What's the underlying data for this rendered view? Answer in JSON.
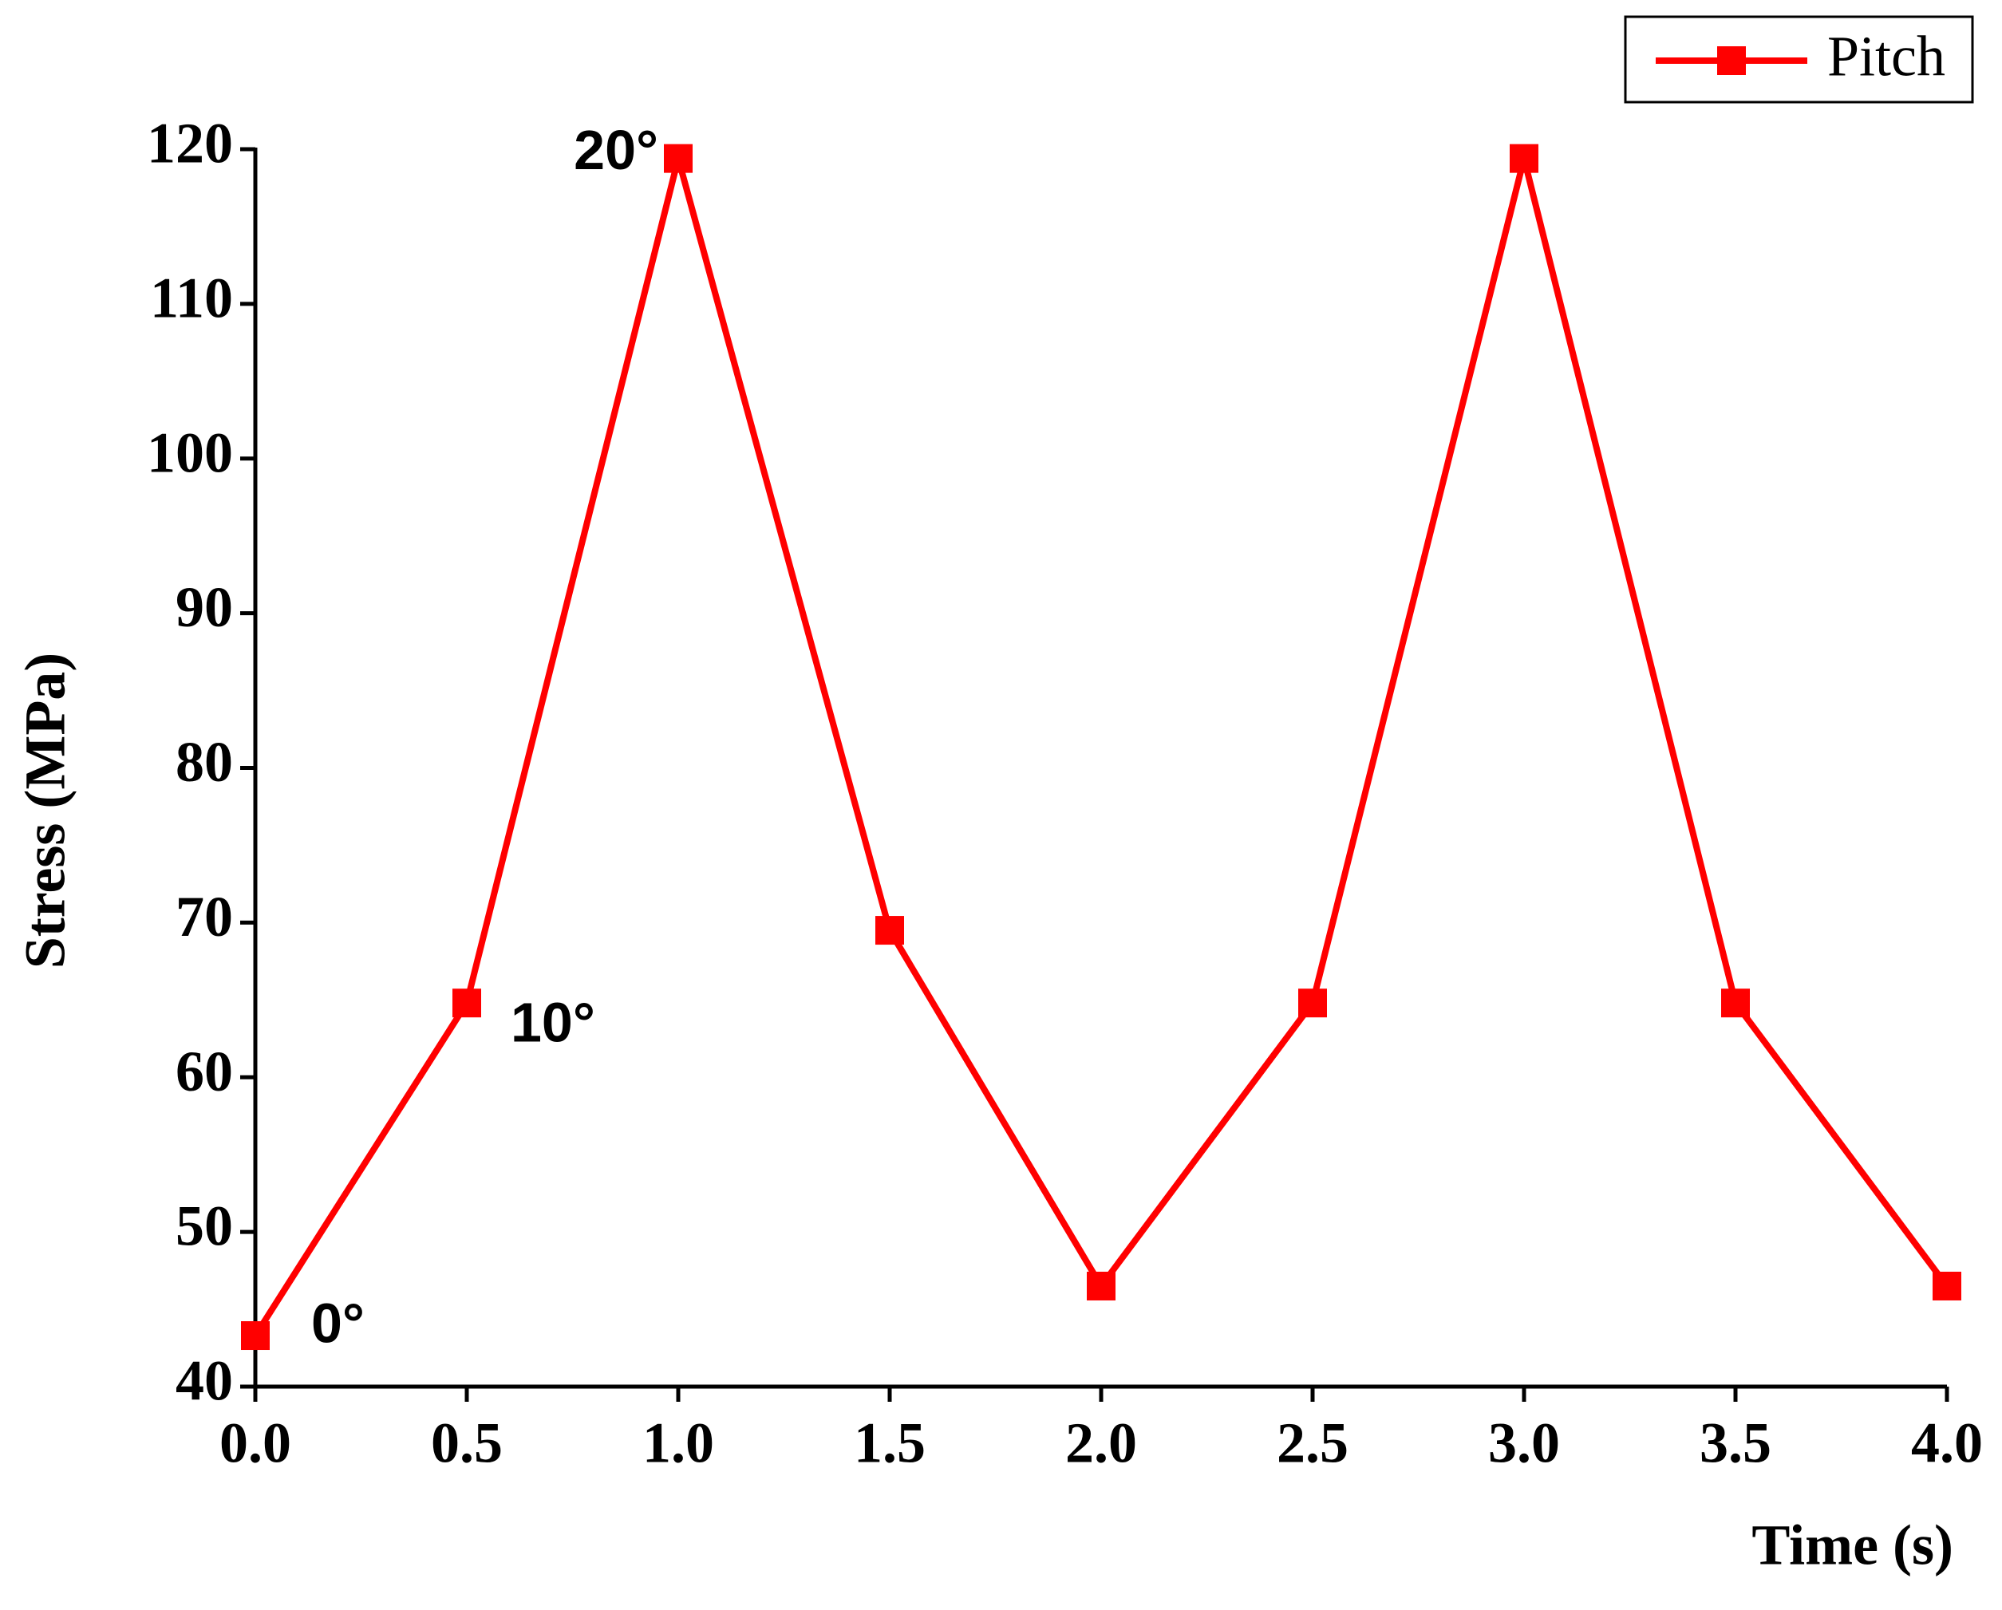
{
  "chart_data": {
    "type": "line",
    "x": [
      0,
      0.5,
      1,
      1.5,
      2,
      2.5,
      3,
      3.5,
      4
    ],
    "series": [
      {
        "name": "Pitch",
        "color": "#ff0000",
        "values": [
          43.3,
          64.8,
          119.4,
          69.5,
          46.5,
          64.8,
          119.4,
          64.8,
          46.5
        ]
      }
    ],
    "xlabel": "Time (s)",
    "ylabel": "Stress (MPa)",
    "xlim": [
      0,
      4
    ],
    "ylim": [
      40,
      120
    ],
    "xticks": [
      {
        "value": 0,
        "label": "0.0"
      },
      0.5,
      {
        "value": 1,
        "label": "1.0"
      },
      1.5,
      {
        "value": 2,
        "label": "2.0"
      },
      2.5,
      {
        "value": 3,
        "label": "3.0"
      },
      3.5,
      {
        "value": 4,
        "label": "4.0"
      }
    ],
    "yticks": [
      40,
      50,
      60,
      70,
      80,
      90,
      100,
      110,
      120
    ],
    "annotations": [
      "0°",
      "10°",
      "20°"
    ],
    "legend": "top-right",
    "grid": false
  }
}
